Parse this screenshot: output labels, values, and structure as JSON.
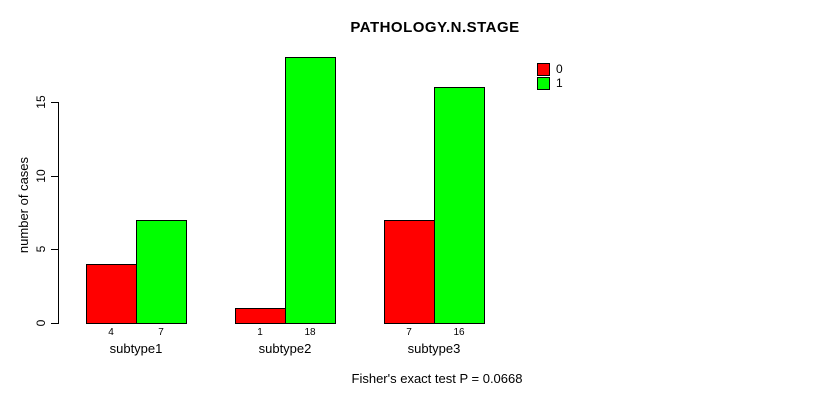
{
  "title": "PATHOLOGY.N.STAGE",
  "footer": "Fisher's exact test P = 0.0668",
  "y_axis": {
    "label": "number of cases",
    "ticks": [
      "0",
      "5",
      "10",
      "15"
    ]
  },
  "legend": {
    "entries": [
      {
        "label": "0",
        "color": "#FF0000"
      },
      {
        "label": "1",
        "color": "#00FF00"
      }
    ]
  },
  "chart_data": {
    "type": "bar",
    "title": "PATHOLOGY.N.STAGE",
    "categories": [
      "subtype1",
      "subtype2",
      "subtype3"
    ],
    "series": [
      {
        "name": "0",
        "color": "#FF0000",
        "values": [
          4,
          1,
          7
        ]
      },
      {
        "name": "1",
        "color": "#00FF00",
        "values": [
          7,
          18,
          16
        ]
      }
    ],
    "bar_count_labels": [
      [
        "4",
        "7"
      ],
      [
        "1",
        "18"
      ],
      [
        "7",
        "16"
      ]
    ],
    "xlabel": "",
    "ylabel": "number of cases",
    "ylim": [
      0,
      18
    ],
    "yticks": [
      0,
      5,
      10,
      15
    ],
    "grid": false,
    "legend_position": "top-right",
    "bar_outline_color": "#000000",
    "annotation": "Fisher's exact test P = 0.0668"
  }
}
